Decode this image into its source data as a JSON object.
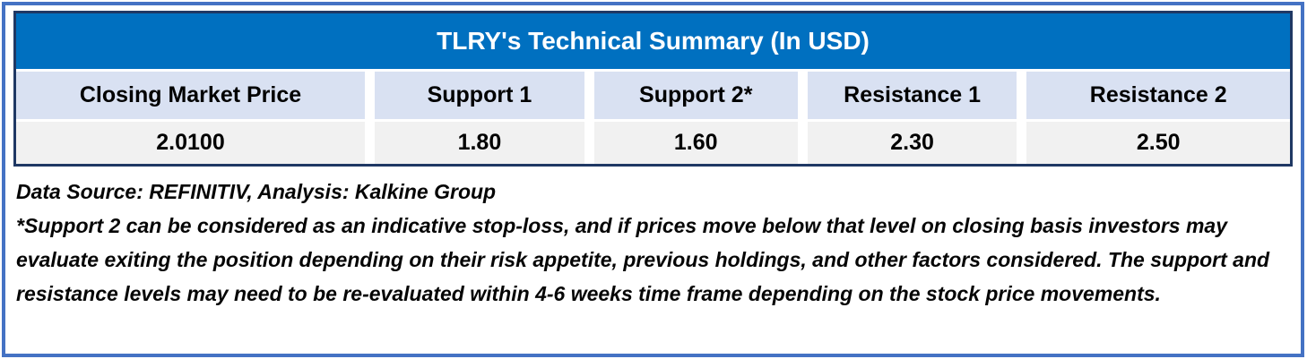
{
  "table": {
    "title": "TLRY's Technical Summary (In USD)",
    "columns": [
      {
        "header": "Closing Market Price",
        "value": "2.0100"
      },
      {
        "header": "Support 1",
        "value": "1.80"
      },
      {
        "header": "Support 2*",
        "value": "1.60"
      },
      {
        "header": "Resistance 1",
        "value": "2.30"
      },
      {
        "header": "Resistance 2",
        "value": "2.50"
      }
    ]
  },
  "footer": {
    "source_line": "Data Source: REFINITIV, Analysis: Kalkine Group",
    "disclaimer": "*Support 2 can be considered as an indicative stop-loss, and if prices move below that level on closing basis investors may evaluate exiting the position depending on their risk appetite, previous holdings, and other factors considered. The support and resistance levels may need to be re-evaluated within 4-6 weeks time frame depending on the stock price movements."
  },
  "colors": {
    "title_bg": "#0070C0",
    "title_text": "#FFFFFF",
    "header_bg": "#D9E1F2",
    "value_bg": "#F1F1F1",
    "table_border": "#1F3864",
    "outer_border": "#4472C4",
    "body_text": "#050505"
  },
  "chart_data": {
    "type": "table",
    "title": "TLRY's Technical Summary (In USD)",
    "columns": [
      "Closing Market Price",
      "Support 1",
      "Support 2*",
      "Resistance 1",
      "Resistance 2"
    ],
    "rows": [
      [
        2.01,
        1.8,
        1.6,
        2.3,
        2.5
      ]
    ],
    "notes": "Data Source: REFINITIV, Analysis: Kalkine Group"
  }
}
